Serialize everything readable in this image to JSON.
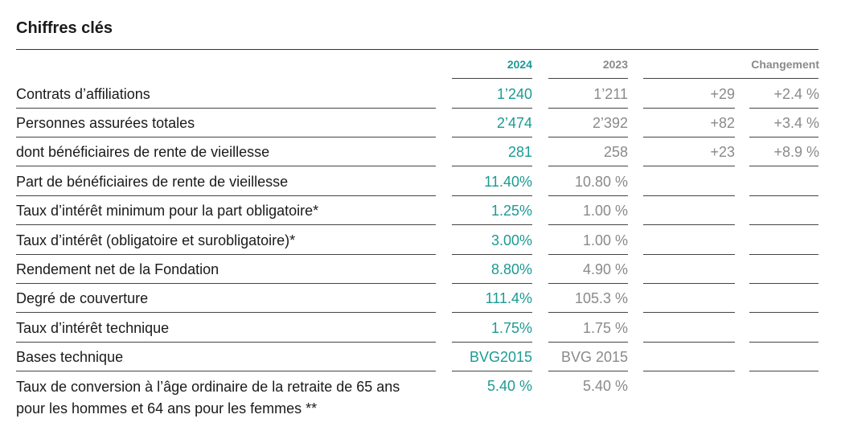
{
  "title": "Chiffres clés",
  "headers": {
    "y2024": "2024",
    "y2023": "2023",
    "change": "Changement"
  },
  "rows": [
    {
      "label": "Contrats d’affiliations",
      "v2024": "1’240",
      "v2023": "1’211",
      "abs": "+29",
      "pct": "+2.4 %"
    },
    {
      "label": "Personnes assurées totales",
      "v2024": "2’474",
      "v2023": "2’392",
      "abs": "+82",
      "pct": "+3.4 %"
    },
    {
      "label": "dont bénéficiaires de rente de vieillesse",
      "v2024": "281",
      "v2023": "258",
      "abs": "+23",
      "pct": "+8.9 %"
    },
    {
      "label": "Part de bénéficiaires de rente de vieillesse",
      "v2024": "11.40%",
      "v2023": "10.80 %",
      "abs": "",
      "pct": ""
    },
    {
      "label": "Taux d’intérêt minimum pour la part obligatoire*",
      "v2024": "1.25%",
      "v2023": "1.00 %",
      "abs": "",
      "pct": ""
    },
    {
      "label": "Taux d’intérêt (obligatoire et surobligatoire)*",
      "v2024": "3.00%",
      "v2023": "1.00 %",
      "abs": "",
      "pct": ""
    },
    {
      "label": "Rendement net de la Fondation",
      "v2024": "8.80%",
      "v2023": "4.90 %",
      "abs": "",
      "pct": ""
    },
    {
      "label": "Degré de couverture",
      "v2024": "111.4%",
      "v2023": "105.3 %",
      "abs": "",
      "pct": ""
    },
    {
      "label": "Taux d’intérêt technique",
      "v2024": "1.75%",
      "v2023": "1.75 %",
      "abs": "",
      "pct": ""
    },
    {
      "label": "Bases technique",
      "v2024": "BVG2015",
      "v2023": "BVG 2015",
      "abs": "",
      "pct": ""
    },
    {
      "label": "Taux de conversion à l’âge ordinaire de la retraite de 65 ans pour les hommes et 64 ans pour les femmes **",
      "v2024": "5.40 %",
      "v2023": "5.40 %",
      "abs": "",
      "pct": ""
    }
  ]
}
